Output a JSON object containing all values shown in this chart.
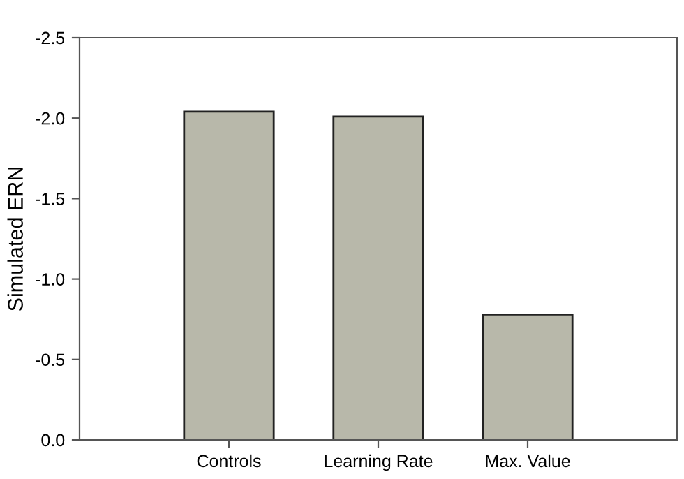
{
  "chart_data": {
    "type": "bar",
    "ylabel": "Simulated ERN",
    "categories": [
      "Controls",
      "Learning Rate",
      "Max. Value"
    ],
    "values": [
      -2.04,
      -2.01,
      -0.78
    ],
    "color": "#b8b8aa",
    "ylim": [
      0.0,
      -2.5
    ],
    "yticks": [
      {
        "value": 0.0,
        "label": "0.0"
      },
      {
        "value": -0.5,
        "label": "-0.5"
      },
      {
        "value": -1.0,
        "label": "-1.0"
      },
      {
        "value": -1.5,
        "label": "-1.5"
      },
      {
        "value": -2.0,
        "label": "-2.0"
      },
      {
        "value": -2.5,
        "label": "-2.5"
      }
    ],
    "grid": false
  }
}
